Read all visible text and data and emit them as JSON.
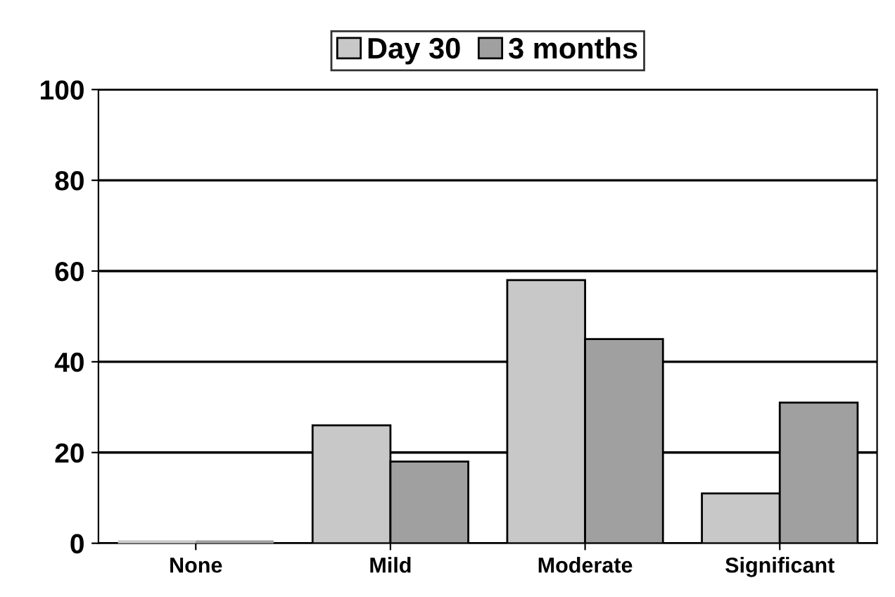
{
  "chart_data": {
    "type": "bar",
    "categories": [
      "None",
      "Mild",
      "Moderate",
      "Significant"
    ],
    "series": [
      {
        "name": "Day 30",
        "color": "#c8c8c8",
        "values": [
          0,
          26,
          58,
          11
        ]
      },
      {
        "name": "3 months",
        "color": "#a0a0a0",
        "values": [
          0,
          18,
          45,
          31
        ]
      }
    ],
    "ylim": [
      0,
      100
    ],
    "yticks": [
      0,
      20,
      40,
      60,
      80,
      100
    ],
    "grid": "y",
    "legend": "top"
  }
}
